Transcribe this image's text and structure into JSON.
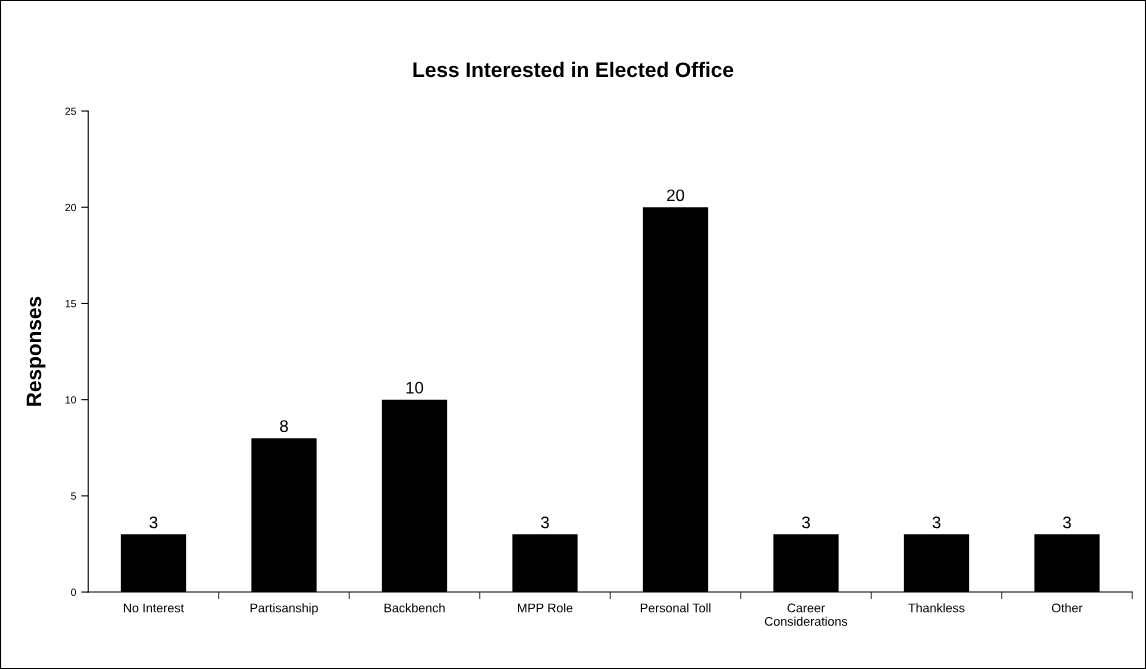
{
  "chart_data": {
    "type": "bar",
    "title": "Less Interested in Elected Office",
    "ylabel": "Responses",
    "categories": [
      "No Interest",
      "Partisanship",
      "Backbench",
      "MPP Role",
      "Personal Toll",
      "Career\nConsiderations",
      "Thankless",
      "Other"
    ],
    "values": [
      3,
      8,
      10,
      3,
      20,
      3,
      3,
      3
    ],
    "color": "#000000",
    "ylim": [
      0,
      25
    ],
    "yticks": [
      0,
      5,
      10,
      15,
      20,
      25
    ],
    "grid": false,
    "data_labels": true
  }
}
